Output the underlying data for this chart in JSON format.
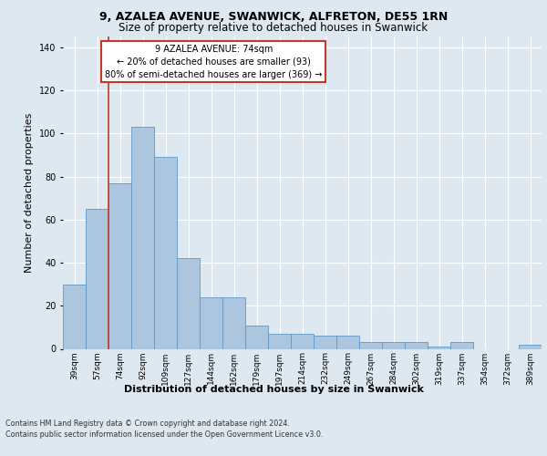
{
  "title1": "9, AZALEA AVENUE, SWANWICK, ALFRETON, DE55 1RN",
  "title2": "Size of property relative to detached houses in Swanwick",
  "xlabel": "Distribution of detached houses by size in Swanwick",
  "ylabel": "Number of detached properties",
  "footer1": "Contains HM Land Registry data © Crown copyright and database right 2024.",
  "footer2": "Contains public sector information licensed under the Open Government Licence v3.0.",
  "bar_labels": [
    "39sqm",
    "57sqm",
    "74sqm",
    "92sqm",
    "109sqm",
    "127sqm",
    "144sqm",
    "162sqm",
    "179sqm",
    "197sqm",
    "214sqm",
    "232sqm",
    "249sqm",
    "267sqm",
    "284sqm",
    "302sqm",
    "319sqm",
    "337sqm",
    "354sqm",
    "372sqm",
    "389sqm"
  ],
  "bar_values": [
    30,
    65,
    77,
    103,
    89,
    42,
    24,
    24,
    11,
    7,
    7,
    6,
    6,
    3,
    3,
    3,
    1,
    3,
    0,
    0,
    2
  ],
  "bar_color": "#adc6e0",
  "bar_edgecolor": "#6098c8",
  "vline_color": "#c0392b",
  "annotation_line1": "9 AZALEA AVENUE: 74sqm",
  "annotation_line2": "← 20% of detached houses are smaller (93)",
  "annotation_line3": "80% of semi-detached houses are larger (369) →",
  "annotation_box_edgecolor": "#c0392b",
  "annotation_box_facecolor": "#ffffff",
  "ylim": [
    0,
    145
  ],
  "yticks": [
    0,
    20,
    40,
    60,
    80,
    100,
    120,
    140
  ],
  "background_color": "#dde8f0",
  "plot_background": "#dde8f0",
  "grid_color": "#ffffff",
  "title1_fontsize": 9,
  "title2_fontsize": 8.5,
  "xlabel_fontsize": 8,
  "ylabel_fontsize": 8,
  "tick_fontsize": 6.5,
  "footer_fontsize": 5.8
}
